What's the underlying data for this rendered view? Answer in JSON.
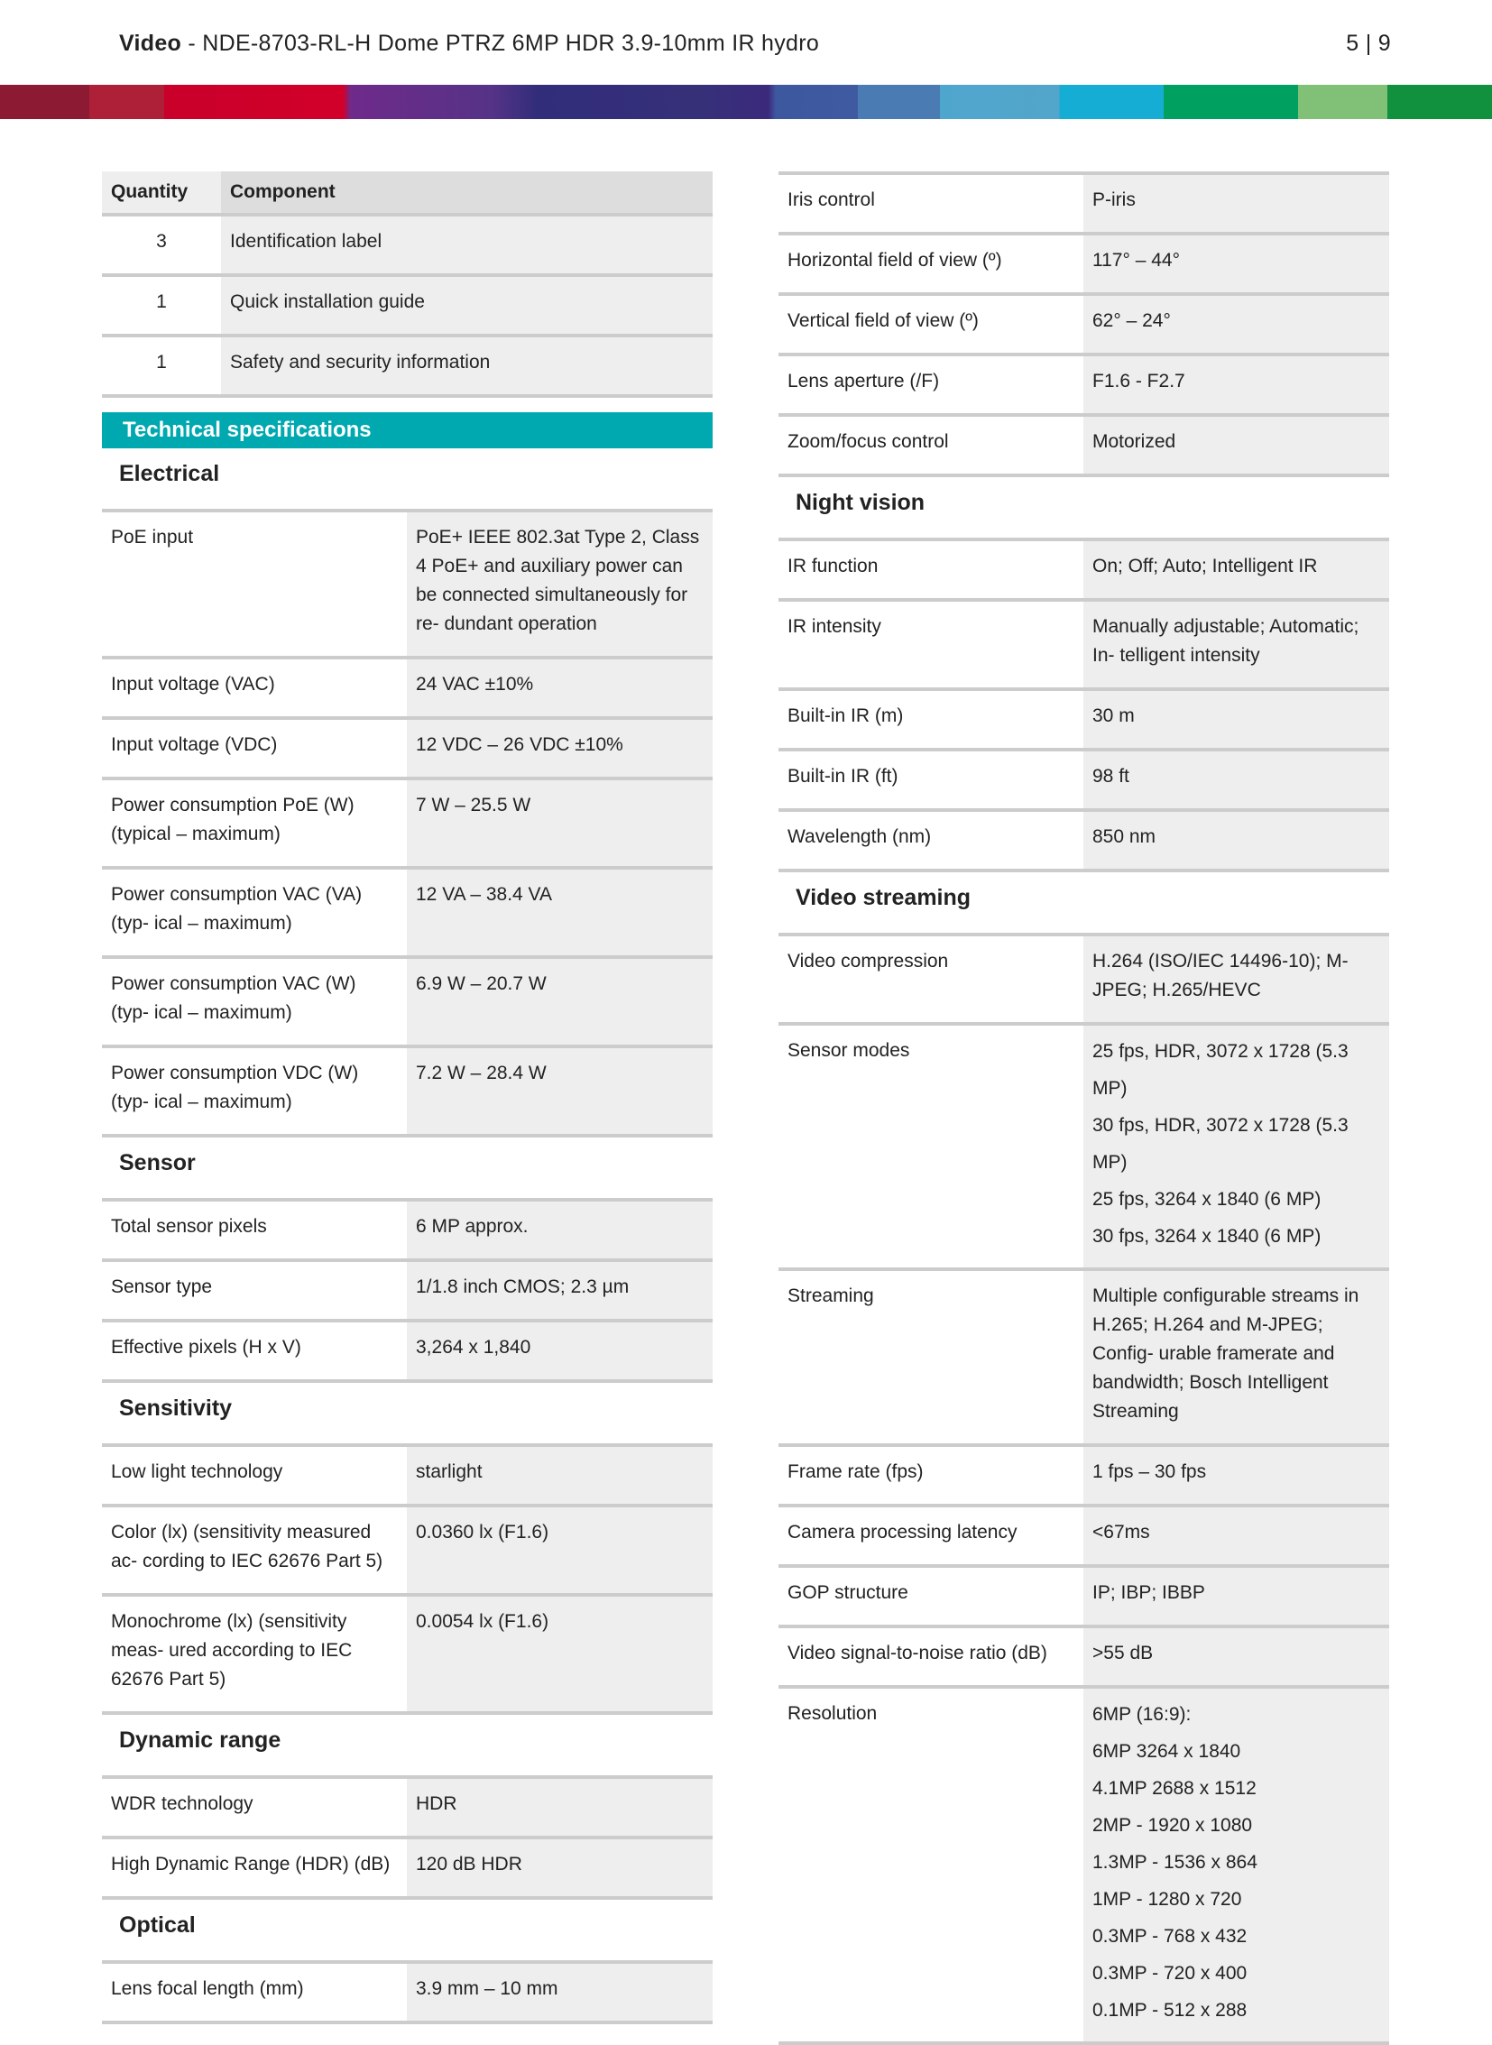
{
  "header": {
    "category": "Video",
    "title": " - NDE-8703-RL-H Dome PTRZ 6MP HDR 3.9-10mm IR hydro",
    "page": "5 | 9"
  },
  "accessories": {
    "headers": {
      "quantity": "Quantity",
      "component": "Component"
    },
    "rows": [
      {
        "quantity": "3",
        "component": "Identification label"
      },
      {
        "quantity": "1",
        "component": "Quick installation guide"
      },
      {
        "quantity": "1",
        "component": "Safety and security information"
      }
    ]
  },
  "tech_title": "Technical specifications",
  "left_column": [
    {
      "type": "section",
      "title": "Electrical"
    },
    {
      "type": "row",
      "label": "PoE input",
      "value": "PoE+ IEEE 802.3at Type 2, Class 4 PoE+ and auxiliary power can be connected simultaneously for re- dundant operation"
    },
    {
      "type": "row",
      "label": "Input voltage (VAC)",
      "value": "24 VAC ±10%"
    },
    {
      "type": "row",
      "label": "Input voltage (VDC)",
      "value": "12 VDC – 26 VDC ±10%"
    },
    {
      "type": "row",
      "label": "Power consumption PoE (W) (typical – maximum)",
      "value": "7 W – 25.5 W"
    },
    {
      "type": "row",
      "label": "Power consumption VAC (VA) (typ- ical – maximum)",
      "value": "12 VA – 38.4 VA"
    },
    {
      "type": "row",
      "label": "Power consumption VAC (W) (typ- ical – maximum)",
      "value": "6.9 W – 20.7 W"
    },
    {
      "type": "row",
      "label": "Power consumption VDC (W) (typ- ical – maximum)",
      "value": "7.2 W – 28.4 W"
    },
    {
      "type": "section",
      "title": "Sensor"
    },
    {
      "type": "row",
      "label": "Total sensor pixels",
      "value": "6 MP approx."
    },
    {
      "type": "row",
      "label": "Sensor type",
      "value": "1/1.8 inch CMOS; 2.3 µm"
    },
    {
      "type": "row",
      "label": "Effective pixels (H x V)",
      "value": "3,264 x 1,840"
    },
    {
      "type": "section",
      "title": "Sensitivity"
    },
    {
      "type": "row",
      "label": "Low light technology",
      "value": "starlight"
    },
    {
      "type": "row",
      "label": "Color (lx) (sensitivity measured ac- cording to IEC 62676 Part 5)",
      "value": "0.0360 lx (F1.6)"
    },
    {
      "type": "row",
      "label": "Monochrome (lx) (sensitivity meas- ured according to IEC 62676 Part 5)",
      "value": "0.0054 lx (F1.6)"
    },
    {
      "type": "section",
      "title": "Dynamic range"
    },
    {
      "type": "row",
      "label": "WDR technology",
      "value": "HDR"
    },
    {
      "type": "row",
      "label": "High Dynamic Range (HDR) (dB)",
      "value": "120 dB HDR"
    },
    {
      "type": "section",
      "title": "Optical"
    },
    {
      "type": "row",
      "label": "Lens focal length (mm)",
      "value": "3.9 mm – 10 mm"
    }
  ],
  "right_column": [
    {
      "type": "row",
      "label": "Iris control",
      "value": "P-iris"
    },
    {
      "type": "row",
      "label": "Horizontal field of view (º)",
      "value": "117° – 44°"
    },
    {
      "type": "row",
      "label": "Vertical field of view (º)",
      "value": "62° – 24°"
    },
    {
      "type": "row",
      "label": "Lens aperture (/F)",
      "value": "F1.6 - F2.7"
    },
    {
      "type": "row",
      "label": "Zoom/focus control",
      "value": "Motorized"
    },
    {
      "type": "section",
      "title": "Night vision"
    },
    {
      "type": "row",
      "label": "IR function",
      "value": "On; Off; Auto; Intelligent IR"
    },
    {
      "type": "row",
      "label": "IR intensity",
      "value": "Manually adjustable; Automatic; In- telligent intensity"
    },
    {
      "type": "row",
      "label": "Built-in IR (m)",
      "value": "30 m"
    },
    {
      "type": "row",
      "label": "Built-in IR (ft)",
      "value": "98 ft"
    },
    {
      "type": "row",
      "label": "Wavelength (nm)",
      "value": "850 nm"
    },
    {
      "type": "section",
      "title": "Video streaming"
    },
    {
      "type": "row",
      "label": "Video compression",
      "value": "H.264 (ISO/IEC 14496-10); M- JPEG; H.265/HEVC"
    },
    {
      "type": "row",
      "label": "Sensor modes",
      "lines": [
        "25 fps, HDR, 3072 x 1728 (5.3 MP)",
        "30 fps, HDR, 3072 x 1728 (5.3 MP)",
        "25 fps, 3264 x 1840 (6 MP)",
        "30 fps, 3264 x 1840 (6 MP)"
      ]
    },
    {
      "type": "row",
      "label": "Streaming",
      "value": "Multiple configurable streams in H.265; H.264 and M-JPEG; Config- urable framerate and bandwidth; Bosch Intelligent Streaming"
    },
    {
      "type": "row",
      "label": "Frame rate (fps)",
      "value": "1 fps – 30 fps"
    },
    {
      "type": "row",
      "label": "Camera processing latency",
      "value": "<67ms"
    },
    {
      "type": "row",
      "label": "GOP structure",
      "value": "IP; IBP; IBBP"
    },
    {
      "type": "row",
      "label": "Video signal-to-noise ratio (dB)",
      "value": ">55 dB"
    },
    {
      "type": "row",
      "label": "Resolution",
      "lines": [
        "6MP (16:9):",
        "6MP 3264 x 1840",
        "4.1MP 2688 x 1512",
        "2MP - 1920 x 1080",
        "1.3MP - 1536 x 864",
        "1MP - 1280 x 720",
        "0.3MP - 768 x 432",
        "0.3MP - 720 x 400",
        "0.1MP - 512 x 288"
      ]
    }
  ]
}
